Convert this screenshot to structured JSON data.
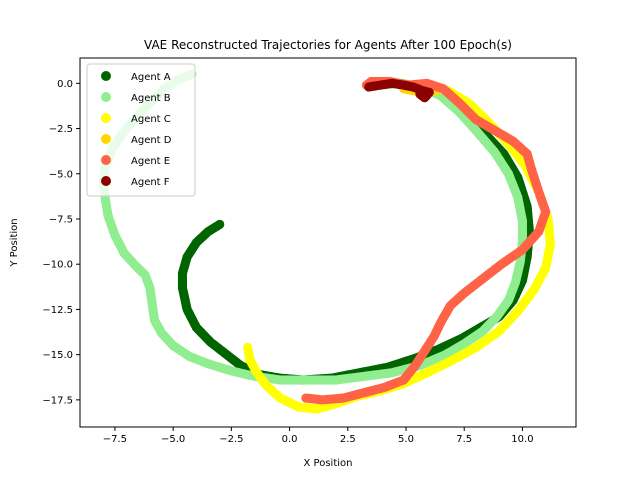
{
  "chart_data": {
    "type": "scatter",
    "title": "VAE Reconstructed Trajectories for Agents After 100 Epoch(s)",
    "xlabel": "X Position",
    "ylabel": "Y Position",
    "xlim": [
      -9.0,
      12.3
    ],
    "ylim": [
      -19.0,
      1.4
    ],
    "xticks": [
      -7.5,
      -5.0,
      -2.5,
      0.0,
      2.5,
      5.0,
      7.5,
      10.0
    ],
    "xtick_labels": [
      "−7.5",
      "−5.0",
      "−2.5",
      "0.0",
      "2.5",
      "5.0",
      "7.5",
      "10.0"
    ],
    "yticks": [
      0.0,
      -2.5,
      -5.0,
      -7.5,
      -10.0,
      -12.5,
      -15.0,
      -17.5
    ],
    "ytick_labels": [
      "0.0",
      "−2.5",
      "−5.0",
      "−7.5",
      "−10.0",
      "−12.5",
      "−15.0",
      "−17.5"
    ],
    "grid": false,
    "legend_position": "upper-left",
    "series": [
      {
        "name": "Agent A",
        "color": "#006400",
        "points": [
          [
            -3.0,
            -7.8
          ],
          [
            -3.5,
            -8.2
          ],
          [
            -4.0,
            -8.8
          ],
          [
            -4.4,
            -9.6
          ],
          [
            -4.6,
            -10.5
          ],
          [
            -4.6,
            -11.3
          ],
          [
            -4.4,
            -12.5
          ],
          [
            -4.0,
            -13.5
          ],
          [
            -3.4,
            -14.3
          ],
          [
            -2.8,
            -14.9
          ],
          [
            -2.1,
            -15.6
          ],
          [
            -1.3,
            -16.1
          ],
          [
            -0.4,
            -16.3
          ],
          [
            0.6,
            -16.4
          ],
          [
            1.8,
            -16.3
          ],
          [
            3.0,
            -16.0
          ],
          [
            4.2,
            -15.7
          ],
          [
            5.4,
            -15.2
          ],
          [
            6.4,
            -14.7
          ],
          [
            7.4,
            -14.1
          ],
          [
            8.2,
            -13.5
          ],
          [
            9.0,
            -12.9
          ],
          [
            9.6,
            -12.0
          ],
          [
            10.0,
            -10.9
          ],
          [
            10.2,
            -9.6
          ],
          [
            10.3,
            -8.2
          ],
          [
            10.2,
            -6.8
          ],
          [
            9.8,
            -5.2
          ],
          [
            9.2,
            -3.9
          ],
          [
            8.4,
            -2.8
          ],
          [
            7.6,
            -1.8
          ],
          [
            6.8,
            -0.8
          ],
          [
            6.0,
            -0.3
          ],
          [
            5.2,
            -0.1
          ]
        ]
      },
      {
        "name": "Agent B",
        "color": "#90ee90",
        "points": [
          [
            -4.2,
            0.5
          ],
          [
            -4.8,
            0.2
          ],
          [
            -5.4,
            -0.3
          ],
          [
            -6.0,
            -1.1
          ],
          [
            -6.6,
            -1.9
          ],
          [
            -7.2,
            -2.8
          ],
          [
            -7.6,
            -3.6
          ],
          [
            -7.9,
            -4.6
          ],
          [
            -8.0,
            -5.5
          ],
          [
            -7.9,
            -6.5
          ],
          [
            -7.8,
            -7.3
          ],
          [
            -7.5,
            -8.4
          ],
          [
            -7.1,
            -9.4
          ],
          [
            -6.6,
            -10.1
          ],
          [
            -6.2,
            -10.6
          ],
          [
            -6.0,
            -11.3
          ],
          [
            -5.9,
            -12.2
          ],
          [
            -5.8,
            -13.1
          ],
          [
            -5.5,
            -13.8
          ],
          [
            -5.0,
            -14.5
          ],
          [
            -4.3,
            -15.1
          ],
          [
            -3.5,
            -15.5
          ],
          [
            -2.5,
            -15.9
          ],
          [
            -1.5,
            -16.2
          ],
          [
            -0.4,
            -16.4
          ],
          [
            0.8,
            -16.4
          ],
          [
            2.0,
            -16.4
          ],
          [
            3.2,
            -16.2
          ],
          [
            4.4,
            -16.0
          ],
          [
            5.6,
            -15.6
          ],
          [
            6.7,
            -15.0
          ],
          [
            7.5,
            -14.4
          ],
          [
            8.3,
            -13.7
          ],
          [
            8.9,
            -12.9
          ],
          [
            9.4,
            -12.0
          ],
          [
            9.7,
            -11.0
          ],
          [
            9.9,
            -9.9
          ],
          [
            10.0,
            -8.8
          ],
          [
            10.0,
            -7.6
          ],
          [
            9.8,
            -6.3
          ],
          [
            9.4,
            -5.0
          ],
          [
            8.8,
            -3.8
          ],
          [
            8.0,
            -2.6
          ],
          [
            7.3,
            -1.6
          ],
          [
            6.5,
            -0.7
          ],
          [
            5.7,
            -0.2
          ],
          [
            4.8,
            0.0
          ],
          [
            3.8,
            -0.1
          ]
        ]
      },
      {
        "name": "Agent C",
        "color": "#ffff00",
        "points": [
          [
            -1.8,
            -14.6
          ],
          [
            -1.7,
            -15.3
          ],
          [
            -1.4,
            -16.0
          ],
          [
            -1.0,
            -16.7
          ],
          [
            -0.4,
            -17.4
          ],
          [
            0.4,
            -17.9
          ],
          [
            1.2,
            -18.0
          ],
          [
            2.0,
            -17.7
          ],
          [
            2.9,
            -17.3
          ],
          [
            3.9,
            -17.0
          ],
          [
            4.9,
            -16.6
          ],
          [
            5.9,
            -16.0
          ],
          [
            7.0,
            -15.3
          ],
          [
            8.0,
            -14.6
          ],
          [
            9.0,
            -13.7
          ],
          [
            9.8,
            -12.6
          ],
          [
            10.5,
            -11.4
          ],
          [
            11.0,
            -10.2
          ],
          [
            11.2,
            -8.9
          ],
          [
            11.1,
            -7.5
          ],
          [
            10.7,
            -6.0
          ],
          [
            10.1,
            -4.5
          ],
          [
            9.3,
            -3.2
          ],
          [
            8.5,
            -2.1
          ],
          [
            7.7,
            -1.1
          ],
          [
            6.8,
            -0.4
          ],
          [
            5.9,
            -0.1
          ],
          [
            5.2,
            -0.3
          ],
          [
            6.4,
            -0.2
          ]
        ]
      },
      {
        "name": "Agent D",
        "color": "#ffd700",
        "points": [
          [
            4.9,
            -0.3
          ],
          [
            5.3,
            -0.4
          ],
          [
            5.8,
            -0.5
          ],
          [
            6.3,
            -0.4
          ]
        ]
      },
      {
        "name": "Agent E",
        "color": "#ff6347",
        "points": [
          [
            0.7,
            -17.4
          ],
          [
            1.4,
            -17.5
          ],
          [
            2.3,
            -17.4
          ],
          [
            3.2,
            -17.1
          ],
          [
            4.1,
            -16.8
          ],
          [
            4.9,
            -16.4
          ],
          [
            5.4,
            -15.6
          ],
          [
            5.8,
            -14.8
          ],
          [
            6.2,
            -14.0
          ],
          [
            6.5,
            -13.2
          ],
          [
            6.9,
            -12.3
          ],
          [
            7.5,
            -11.6
          ],
          [
            8.3,
            -10.8
          ],
          [
            9.1,
            -10.0
          ],
          [
            10.0,
            -9.2
          ],
          [
            10.7,
            -8.2
          ],
          [
            11.0,
            -7.1
          ],
          [
            10.7,
            -6.0
          ],
          [
            10.4,
            -4.8
          ],
          [
            10.2,
            -3.9
          ],
          [
            9.6,
            -3.2
          ],
          [
            8.8,
            -2.6
          ],
          [
            8.0,
            -2.0
          ],
          [
            7.3,
            -1.1
          ],
          [
            6.6,
            -0.3
          ],
          [
            5.9,
            0.0
          ],
          [
            5.1,
            -0.1
          ],
          [
            4.3,
            0.1
          ],
          [
            3.5,
            0.1
          ],
          [
            3.3,
            -0.1
          ]
        ]
      },
      {
        "name": "Agent F",
        "color": "#8b0000",
        "points": [
          [
            3.4,
            -0.2
          ],
          [
            3.9,
            -0.1
          ],
          [
            4.4,
            0.0
          ],
          [
            4.9,
            -0.1
          ],
          [
            5.3,
            -0.2
          ],
          [
            5.7,
            -0.4
          ],
          [
            6.0,
            -0.5
          ],
          [
            5.8,
            -0.8
          ],
          [
            5.6,
            -0.6
          ]
        ]
      }
    ]
  }
}
